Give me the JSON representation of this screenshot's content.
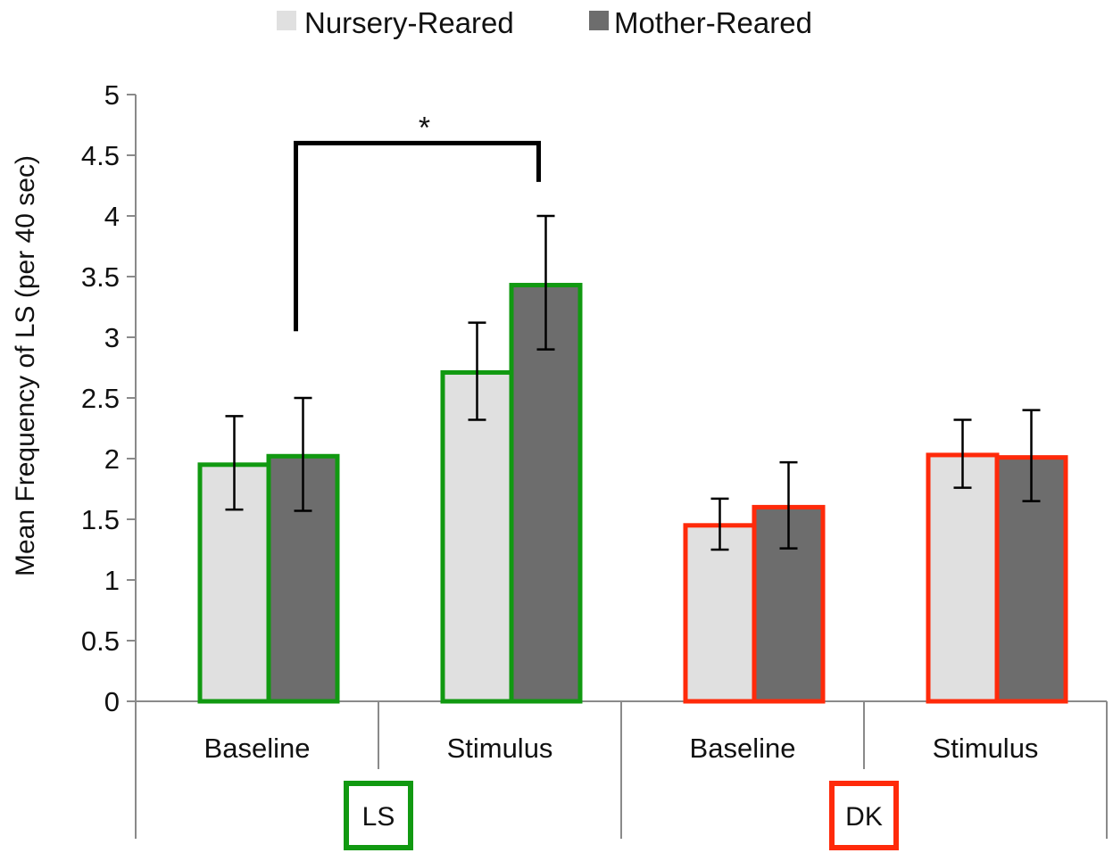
{
  "chart_data": {
    "type": "bar",
    "title": "",
    "xlabel": "",
    "ylabel": "Mean Frequency of LS (per 40 sec)",
    "ylim": [
      0,
      5
    ],
    "yticks": [
      "0",
      "0.5",
      "1",
      "1.5",
      "2",
      "2.5",
      "3",
      "3.5",
      "4",
      "4.5",
      "5"
    ],
    "grid": false,
    "legend_position": "top",
    "groups": [
      {
        "label": "LS",
        "color": "#119911",
        "conditions": [
          "Baseline",
          "Stimulus"
        ]
      },
      {
        "label": "DK",
        "color": "#ff2a0a",
        "conditions": [
          "Baseline",
          "Stimulus"
        ]
      }
    ],
    "categories": [
      "Baseline",
      "Stimulus",
      "Baseline",
      "Stimulus"
    ],
    "series": [
      {
        "name": "Nursery-Reared",
        "fill": "#e0e0e0",
        "values": [
          1.95,
          2.71,
          1.45,
          2.03
        ],
        "error_low": [
          1.58,
          2.32,
          1.25,
          1.76
        ],
        "error_high": [
          2.35,
          3.12,
          1.67,
          2.32
        ]
      },
      {
        "name": "Mother-Reared",
        "fill": "#6d6d6d",
        "values": [
          2.02,
          3.43,
          1.6,
          2.01
        ],
        "error_low": [
          1.57,
          2.9,
          1.26,
          1.65
        ],
        "error_high": [
          2.5,
          4.0,
          1.97,
          2.4
        ]
      }
    ],
    "significance": [
      {
        "label": "*",
        "from_category": 0,
        "from_series": 1,
        "to_category": 1,
        "to_series": 1,
        "level": 4.6
      }
    ]
  }
}
